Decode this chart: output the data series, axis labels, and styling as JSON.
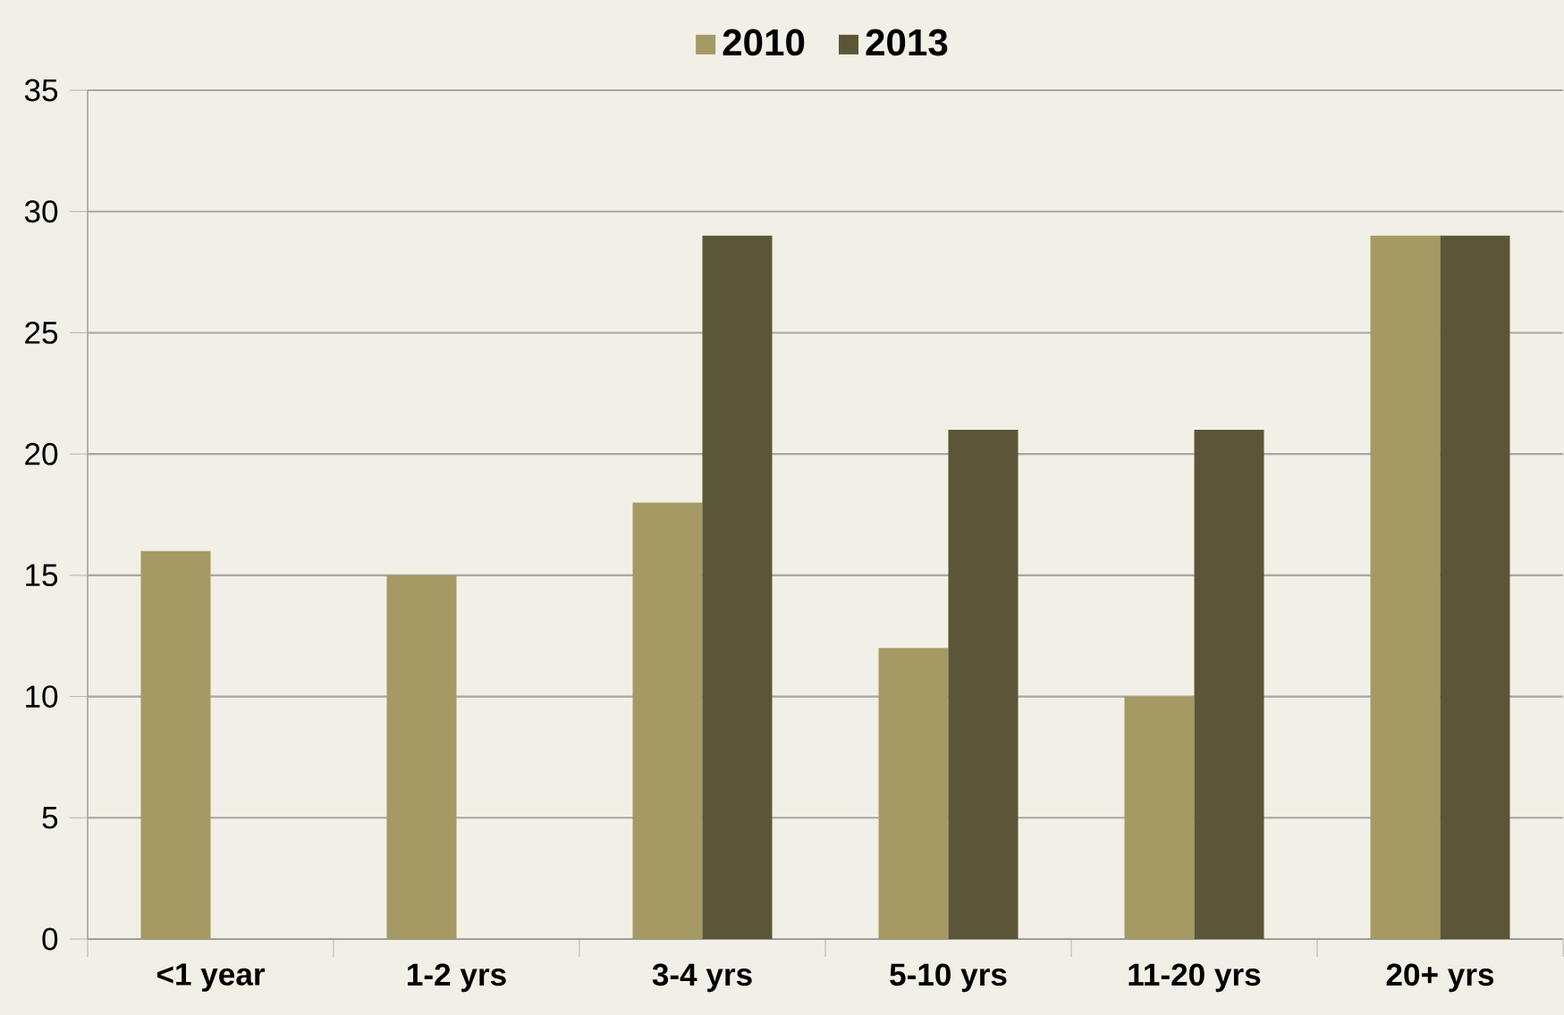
{
  "chart_data": {
    "type": "bar",
    "categories": [
      "<1 year",
      "1-2 yrs",
      "3-4 yrs",
      "5-10 yrs",
      "11-20 yrs",
      "20+ yrs"
    ],
    "series": [
      {
        "name": "2010",
        "color": "#a59a64",
        "values": [
          16,
          15,
          18,
          12,
          10,
          29
        ]
      },
      {
        "name": "2013",
        "color": "#5c5638",
        "values": [
          null,
          null,
          29,
          21,
          21,
          29
        ]
      }
    ],
    "ylim": [
      0,
      35
    ],
    "yticks": [
      0,
      5,
      10,
      15,
      20,
      25,
      30,
      35
    ],
    "grid": "y",
    "legend": "top"
  }
}
